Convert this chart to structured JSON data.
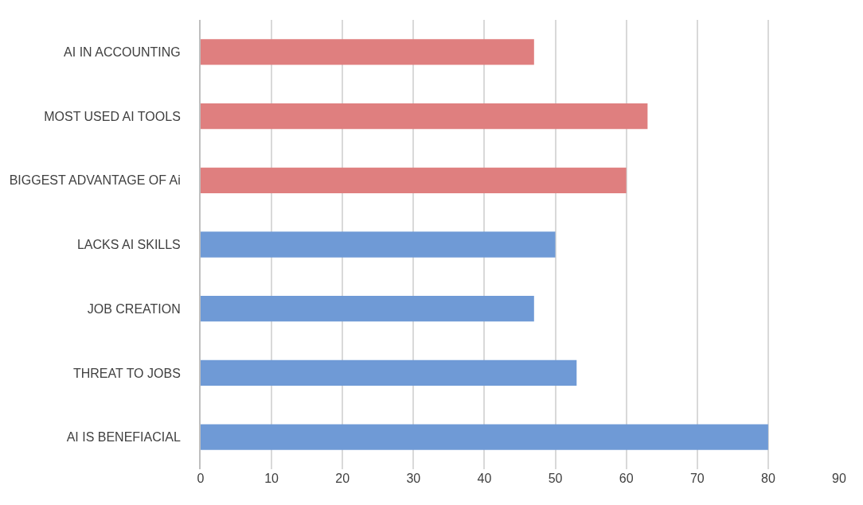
{
  "chart_data": {
    "type": "bar",
    "orientation": "horizontal",
    "categories": [
      "AI IN ACCOUNTING",
      "MOST USED AI TOOLS",
      "BIGGEST ADVANTAGE OF Ai",
      "LACKS AI SKILLS",
      "JOB CREATION",
      "THREAT TO JOBS",
      "AI IS BENEFIACIAL"
    ],
    "values": [
      47,
      63,
      60,
      50,
      47,
      53,
      80
    ],
    "colors": [
      "#df7f7f",
      "#df7f7f",
      "#df7f7f",
      "#6f9ad6",
      "#6f9ad6",
      "#6f9ad6",
      "#6f9ad6"
    ],
    "xlim": [
      0,
      90
    ],
    "xticks": [
      0,
      10,
      20,
      30,
      40,
      50,
      60,
      70,
      80,
      90
    ],
    "grid": "x"
  }
}
